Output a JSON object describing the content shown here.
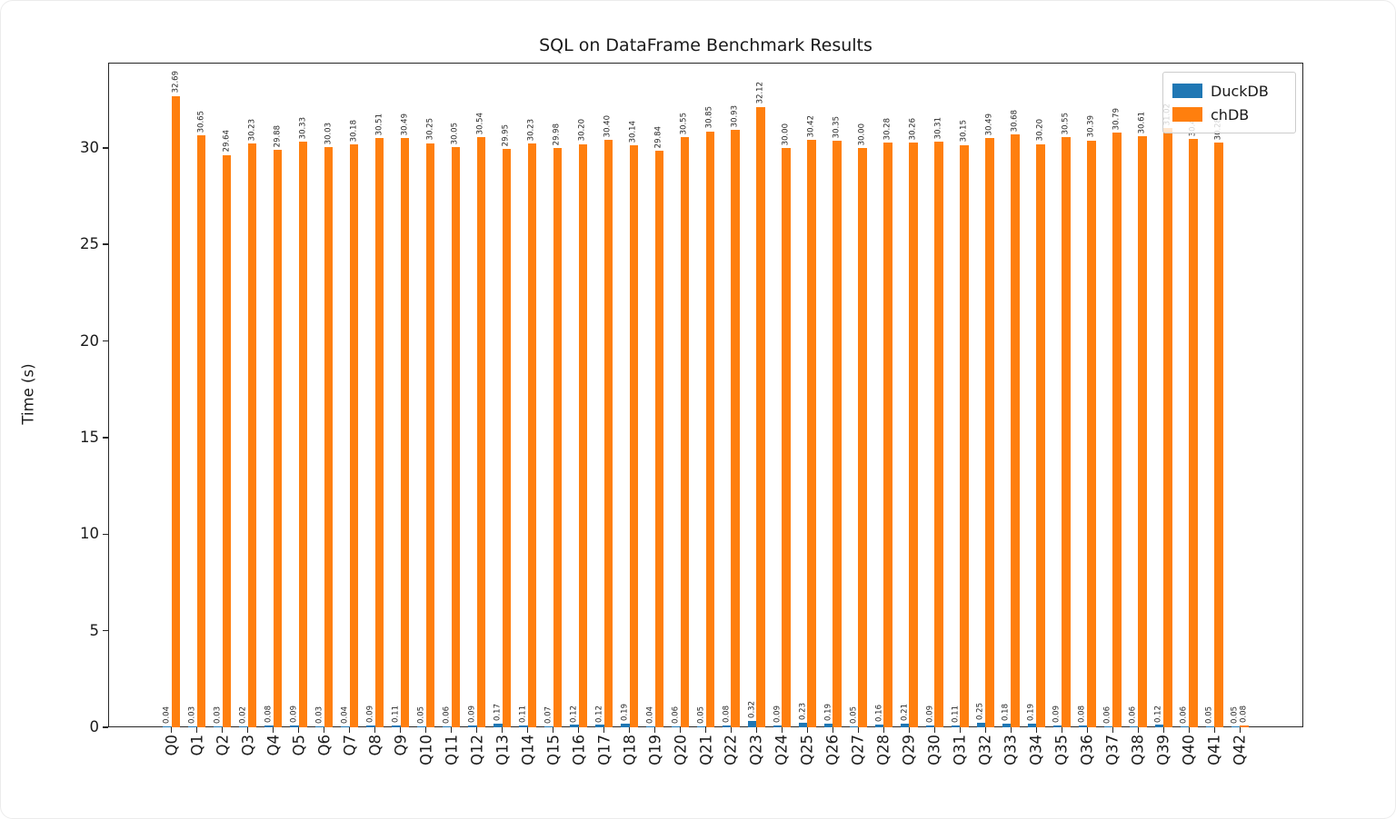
{
  "title": "SQL on DataFrame Benchmark Results",
  "axes": {
    "ylabel": "Time (s)",
    "ytick_labels": [
      "0",
      "5",
      "10",
      "15",
      "20",
      "25",
      "30"
    ]
  },
  "legend": {
    "items": [
      {
        "label": "DuckDB",
        "color": "#1f77b4"
      },
      {
        "label": "chDB",
        "color": "#ff7f0e"
      }
    ]
  },
  "chart_data": {
    "type": "bar",
    "title": "SQL on DataFrame Benchmark Results",
    "xlabel": "",
    "ylabel": "Time (s)",
    "ylim": [
      0,
      34.4
    ],
    "yticks": [
      0,
      5,
      10,
      15,
      20,
      25,
      30
    ],
    "grid": false,
    "legend_position": "upper right",
    "bar_value_labels": true,
    "bar_value_label_rotation": 90,
    "categories": [
      "Q0",
      "Q1",
      "Q2",
      "Q3",
      "Q4",
      "Q5",
      "Q6",
      "Q7",
      "Q8",
      "Q9",
      "Q10",
      "Q11",
      "Q12",
      "Q13",
      "Q14",
      "Q15",
      "Q16",
      "Q17",
      "Q18",
      "Q19",
      "Q20",
      "Q21",
      "Q22",
      "Q23",
      "Q24",
      "Q25",
      "Q26",
      "Q27",
      "Q28",
      "Q29",
      "Q30",
      "Q31",
      "Q32",
      "Q33",
      "Q34",
      "Q35",
      "Q36",
      "Q37",
      "Q38",
      "Q39",
      "Q40",
      "Q41",
      "Q42"
    ],
    "series": [
      {
        "name": "DuckDB",
        "color": "#1f77b4",
        "values": [
          0.04,
          0.03,
          0.03,
          0.02,
          0.08,
          0.09,
          0.03,
          0.04,
          0.09,
          0.11,
          0.05,
          0.06,
          0.09,
          0.17,
          0.11,
          0.07,
          0.12,
          0.12,
          0.19,
          0.04,
          0.06,
          0.05,
          0.08,
          0.32,
          0.09,
          0.23,
          0.19,
          0.05,
          0.16,
          0.21,
          0.09,
          0.11,
          0.25,
          0.18,
          0.19,
          0.09,
          0.08,
          0.06,
          0.06,
          0.12,
          0.06,
          0.05,
          0.05
        ]
      },
      {
        "name": "chDB",
        "color": "#ff7f0e",
        "values": [
          32.69,
          30.65,
          29.64,
          30.23,
          29.88,
          30.33,
          30.03,
          30.18,
          30.51,
          30.49,
          30.25,
          30.05,
          30.54,
          29.95,
          30.23,
          29.98,
          30.2,
          30.4,
          30.14,
          29.84,
          30.55,
          30.85,
          30.93,
          32.12,
          30.0,
          30.42,
          30.35,
          30.0,
          30.28,
          30.26,
          30.31,
          30.15,
          30.49,
          30.68,
          30.2,
          30.55,
          30.39,
          30.79,
          30.61,
          31.02,
          30.47,
          30.28,
          0.08
        ]
      }
    ]
  }
}
